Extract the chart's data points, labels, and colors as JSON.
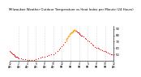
{
  "title": "Milwaukee Weather Outdoor Temperature vs Heat Index per Minute (24 Hours)",
  "title_fontsize": 2.8,
  "background_color": "#ffffff",
  "dot_color": "#ff0000",
  "highlight_color": "#ffa500",
  "dot_size": 0.8,
  "ylim": [
    40,
    95
  ],
  "xlim": [
    0,
    1440
  ],
  "yticks": [
    50,
    60,
    70,
    80,
    90
  ],
  "ytick_labels": [
    "50",
    "60",
    "70",
    "80",
    "90"
  ],
  "ytick_fontsize": 2.8,
  "xtick_fontsize": 2.2,
  "grid_color": "#bbbbbb",
  "x_data": [
    0,
    10,
    20,
    30,
    40,
    50,
    60,
    70,
    80,
    90,
    100,
    110,
    120,
    150,
    180,
    210,
    240,
    270,
    300,
    330,
    360,
    390,
    420,
    450,
    480,
    510,
    540,
    570,
    600,
    630,
    660,
    680,
    700,
    720,
    740,
    760,
    780,
    790,
    800,
    810,
    820,
    830,
    840,
    850,
    860,
    870,
    880,
    890,
    900,
    910,
    920,
    930,
    940,
    950,
    960,
    970,
    980,
    990,
    1000,
    1020,
    1040,
    1060,
    1080,
    1100,
    1120,
    1140,
    1160,
    1180,
    1200,
    1220,
    1240,
    1260,
    1280,
    1300,
    1320,
    1340,
    1360,
    1380,
    1400,
    1420,
    1440
  ],
  "y_data": [
    55,
    54,
    53,
    52,
    51,
    50,
    49,
    48,
    47,
    46,
    46,
    45,
    44,
    44,
    43,
    43,
    42,
    42,
    42,
    42,
    43,
    44,
    45,
    46,
    47,
    48,
    49,
    50,
    51,
    53,
    56,
    58,
    60,
    63,
    66,
    69,
    72,
    74,
    76,
    78,
    80,
    82,
    83,
    84,
    85,
    86,
    87,
    88,
    88,
    87,
    87,
    86,
    85,
    84,
    83,
    82,
    81,
    80,
    79,
    78,
    76,
    74,
    72,
    70,
    68,
    66,
    64,
    62,
    61,
    60,
    59,
    58,
    57,
    56,
    55,
    54,
    53,
    52,
    51,
    50,
    49
  ],
  "highlight_x": [
    780,
    790,
    800,
    810,
    820,
    830,
    840,
    850,
    860,
    870,
    880,
    890,
    900,
    910
  ],
  "highlight_y": [
    72,
    74,
    76,
    78,
    80,
    82,
    83,
    84,
    85,
    86,
    87,
    88,
    88,
    87
  ],
  "xtick_positions": [
    0,
    120,
    240,
    360,
    480,
    600,
    720,
    840,
    960,
    1080,
    1200,
    1320,
    1440
  ],
  "xtick_labels": [
    "12\nAM",
    "2\nAM",
    "4\nAM",
    "6\nAM",
    "8\nAM",
    "10\nAM",
    "12\nPM",
    "2\nPM",
    "4\nPM",
    "6\nPM",
    "8\nPM",
    "10\nPM",
    "12\nAM"
  ],
  "vgrid_positions": [
    120,
    240,
    360,
    480,
    600,
    720,
    840,
    960,
    1080,
    1200,
    1320
  ]
}
